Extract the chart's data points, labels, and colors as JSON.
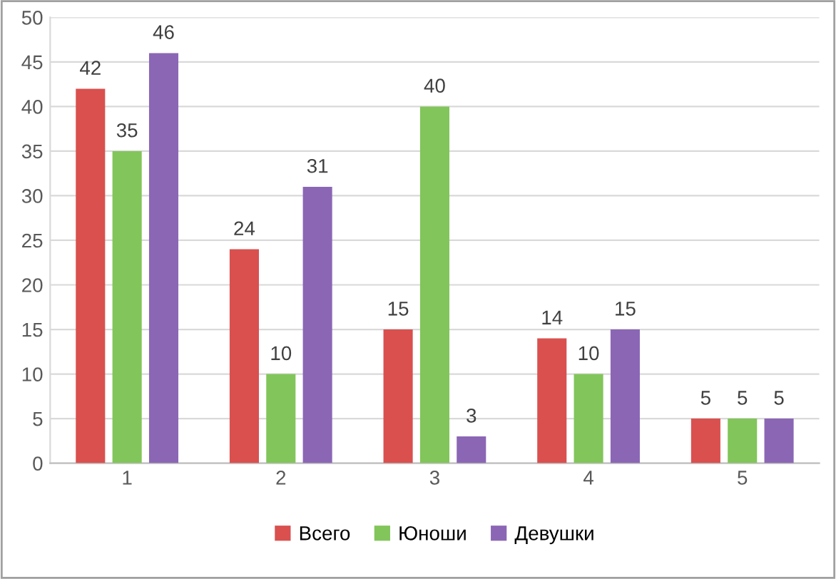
{
  "chart_data": {
    "type": "bar",
    "categories": [
      "1",
      "2",
      "3",
      "4",
      "5"
    ],
    "series": [
      {
        "name": "Всего",
        "color": "#d9504f",
        "values": [
          42,
          24,
          15,
          14,
          5
        ]
      },
      {
        "name": "Юноши",
        "color": "#82c55a",
        "values": [
          35,
          10,
          40,
          10,
          5
        ]
      },
      {
        "name": "Девушки",
        "color": "#8b66b5",
        "values": [
          46,
          31,
          3,
          15,
          5
        ]
      }
    ],
    "ylim": [
      0,
      50
    ],
    "yticks": [
      0,
      5,
      10,
      15,
      20,
      25,
      30,
      35,
      40,
      45,
      50
    ],
    "grid": "y",
    "legend": "bottom",
    "data_labels": true
  }
}
